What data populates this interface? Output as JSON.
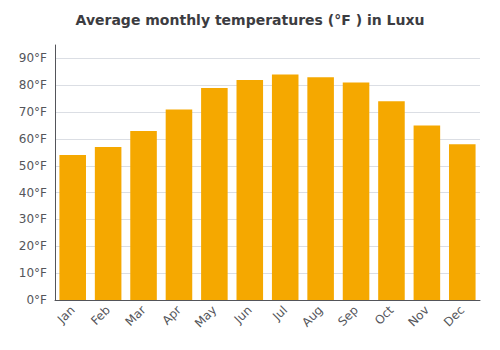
{
  "chart_data": {
    "type": "bar",
    "title": "Average monthly temperatures (°F ) in Luxu",
    "categories": [
      "Jan",
      "Feb",
      "Mar",
      "Apr",
      "May",
      "Jun",
      "Jul",
      "Aug",
      "Sep",
      "Oct",
      "Nov",
      "Dec"
    ],
    "values": [
      54,
      57,
      63,
      71,
      79,
      82,
      84,
      83,
      81,
      74,
      65,
      58
    ],
    "color": "#F5A800",
    "ylim": [
      0,
      95
    ],
    "yticks": [
      {
        "value": 0,
        "label": "0°F"
      },
      {
        "value": 10,
        "label": "10°F"
      },
      {
        "value": 20,
        "label": "20°F"
      },
      {
        "value": 30,
        "label": "30°F"
      },
      {
        "value": 40,
        "label": "40°F"
      },
      {
        "value": 50,
        "label": "50°F"
      },
      {
        "value": 60,
        "label": "60°F"
      },
      {
        "value": 70,
        "label": "70°F"
      },
      {
        "value": 80,
        "label": "80°F"
      },
      {
        "value": 90,
        "label": "90°F"
      }
    ],
    "grid": true
  }
}
